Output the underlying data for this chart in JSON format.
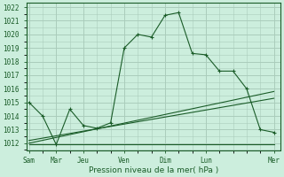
{
  "xlabel": "Pression niveau de la mer( hPa )",
  "bg_color": "#cceedd",
  "grid_color": "#aaccbb",
  "line_color": "#1a5c28",
  "ylim": [
    1011.5,
    1022.3
  ],
  "yticks": [
    1012,
    1013,
    1014,
    1015,
    1016,
    1017,
    1018,
    1019,
    1020,
    1021,
    1022
  ],
  "xtick_labels": [
    "Sam",
    "Mar",
    "Jeu",
    "Ven",
    "Dim",
    "Lun",
    "Mer"
  ],
  "xtick_positions": [
    0,
    2,
    4,
    7,
    10,
    13,
    18
  ],
  "xlim": [
    -0.2,
    18.5
  ],
  "main_x": [
    0,
    1,
    2,
    3,
    4,
    5,
    6,
    7,
    8,
    9,
    10,
    11,
    12,
    13,
    14,
    15,
    16,
    17,
    18
  ],
  "main_y": [
    1015.0,
    1014.0,
    1011.9,
    1014.5,
    1013.3,
    1013.1,
    1013.5,
    1019.0,
    1020.0,
    1019.8,
    1021.4,
    1021.6,
    1018.6,
    1018.5,
    1017.3,
    1017.3,
    1016.0,
    1013.0,
    1012.8
  ],
  "band_line1_x": [
    0,
    18
  ],
  "band_line1_y": [
    1012.0,
    1015.8
  ],
  "band_line2_x": [
    0,
    18
  ],
  "band_line2_y": [
    1012.2,
    1015.3
  ],
  "band_line3_x": [
    0,
    18
  ],
  "band_line3_y": [
    1011.9,
    1011.9
  ]
}
